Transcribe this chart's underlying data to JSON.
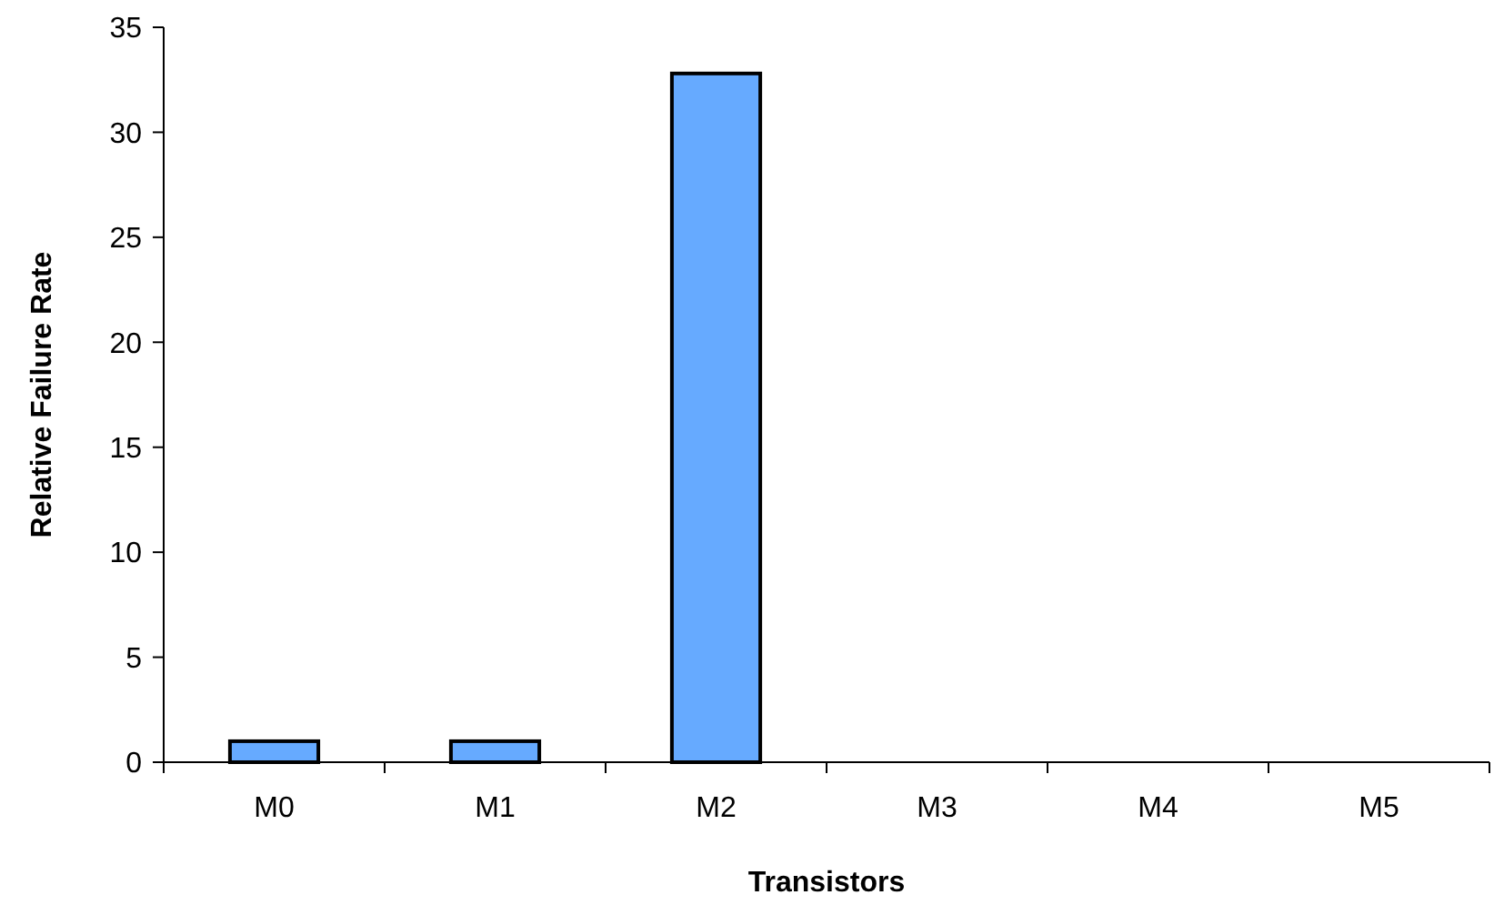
{
  "chart_data": {
    "type": "bar",
    "xlabel": "Transistors",
    "ylabel": "Relative Failure Rate",
    "categories": [
      "M0",
      "M1",
      "M2",
      "M3",
      "M4",
      "M5"
    ],
    "values": [
      1,
      1,
      32.8,
      0,
      0,
      0
    ],
    "color": "#66aaff",
    "ylim": [
      0,
      35
    ],
    "yticks": [
      0,
      5,
      10,
      15,
      20,
      25,
      30,
      35
    ],
    "grid": false
  }
}
